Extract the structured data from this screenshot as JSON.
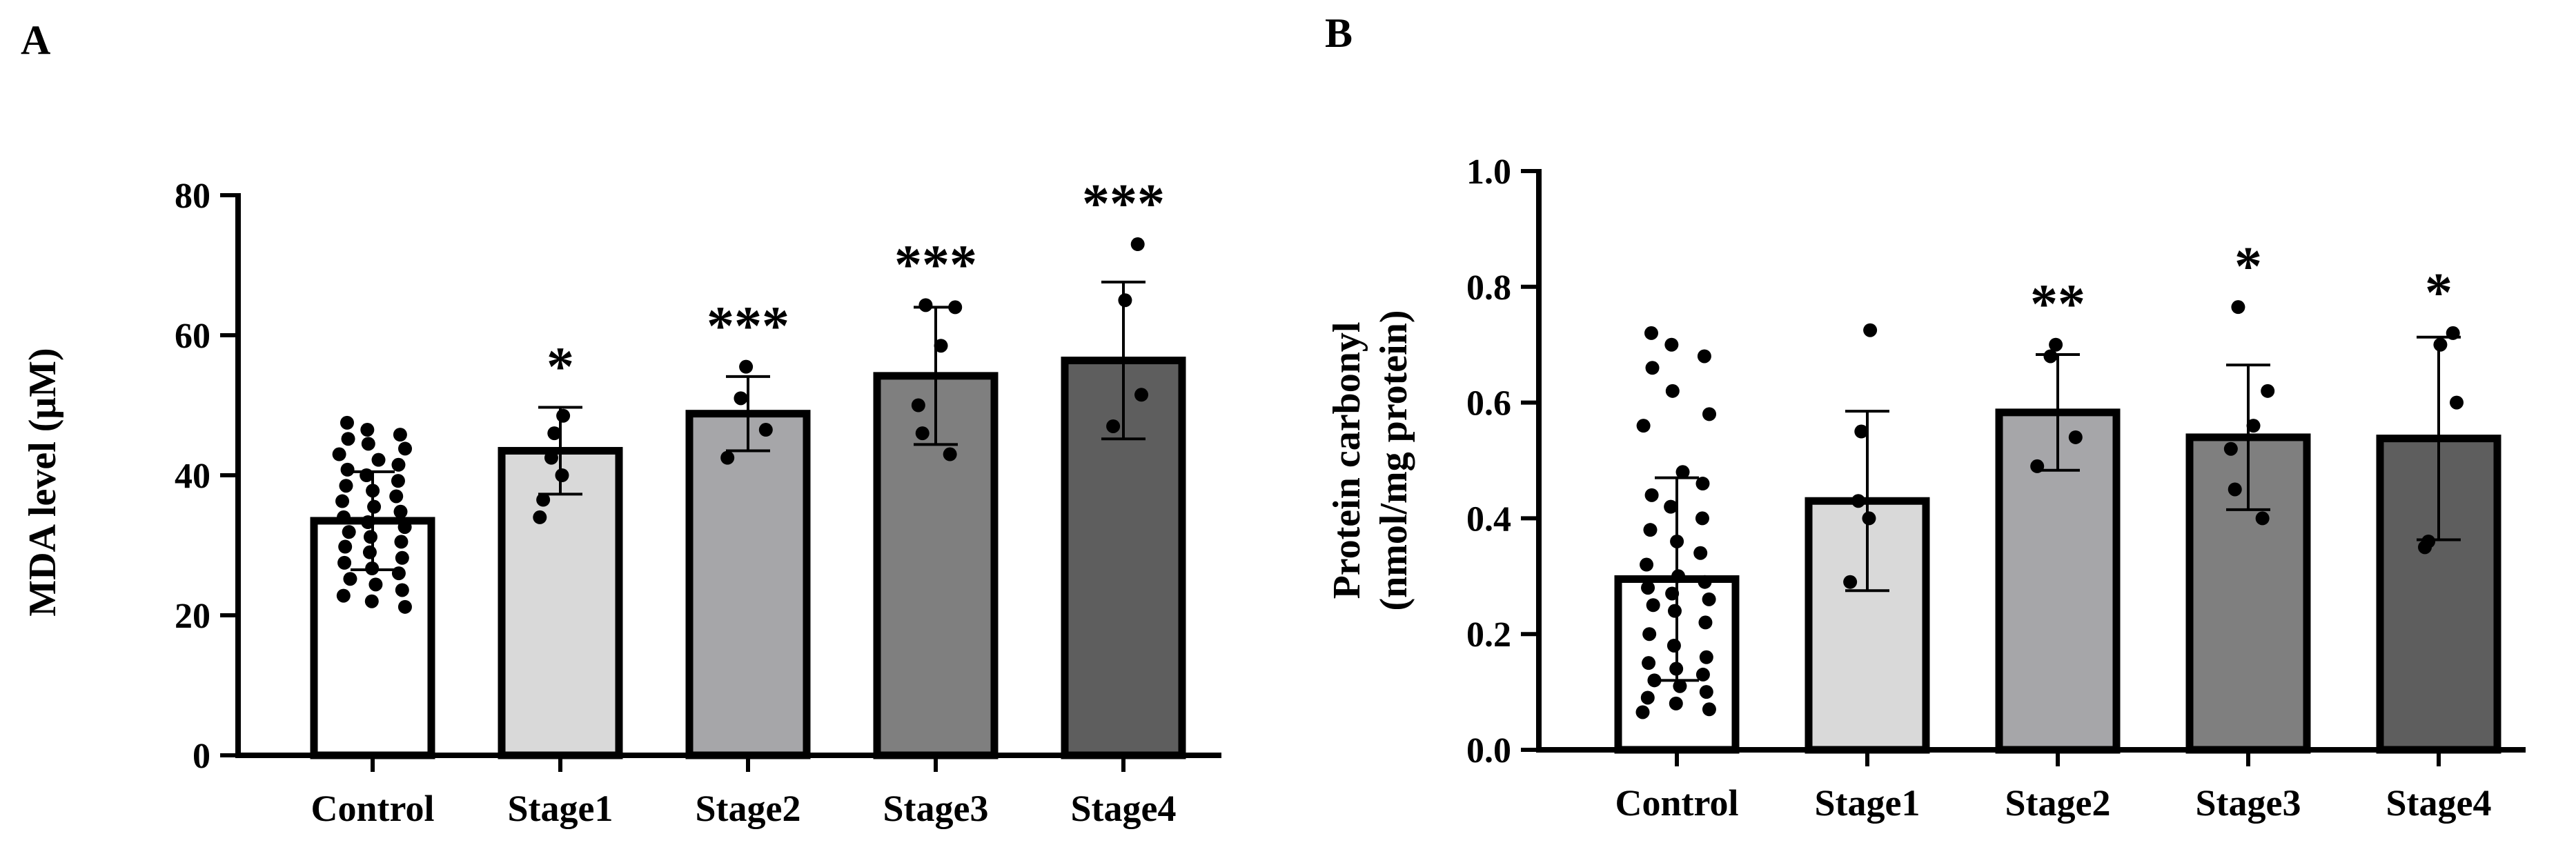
{
  "chart_data": [
    {
      "type": "bar",
      "panel_label": "A",
      "title": "",
      "xlabel": "",
      "ylabel": "MDA level (μM)",
      "ylim": [
        0,
        80
      ],
      "yticks": [
        0,
        20,
        40,
        60,
        80
      ],
      "tick_labels": [
        "0",
        "20",
        "40",
        "60",
        "80"
      ],
      "categories": [
        "Control",
        "Stage1",
        "Stage2",
        "Stage3",
        "Stage4"
      ],
      "values": [
        33.5,
        43.5,
        48.8,
        54.2,
        56.4
      ],
      "error_sd": [
        7.0,
        6.2,
        5.3,
        9.8,
        11.2
      ],
      "bar_colors": [
        "#ffffff",
        "#d9d9d9",
        "#a6a6a9",
        "#7f7f7f",
        "#5e5e5e"
      ],
      "significance": [
        "",
        "*",
        "***",
        "***",
        "***"
      ],
      "points": [
        [
          47.5,
          46.5,
          45.8,
          45.2,
          44.5,
          43.8,
          43.0,
          42.2,
          41.5,
          40.8,
          40.0,
          39.2,
          38.5,
          37.8,
          37.0,
          36.3,
          35.5,
          34.8,
          34.0,
          33.3,
          32.6,
          31.9,
          31.2,
          30.5,
          29.8,
          29.0,
          28.2,
          27.5,
          26.7,
          26.0,
          25.2,
          24.4,
          23.6,
          22.8,
          22.0,
          21.2
        ],
        [
          48.5,
          46.0,
          42.5,
          40.0,
          36.5,
          34.0
        ],
        [
          55.5,
          51.0,
          46.5,
          42.5
        ],
        [
          64.3,
          64.0,
          58.5,
          50.0,
          46.0,
          43.0
        ],
        [
          73.0,
          65.0,
          51.5,
          47.0
        ]
      ]
    },
    {
      "type": "bar",
      "panel_label": "B",
      "title": "",
      "xlabel": "",
      "ylabel": "Protein carbonyl",
      "ylabel_line2": "(nmol/mg protein)",
      "ylim": [
        0,
        1.0
      ],
      "yticks": [
        0.0,
        0.2,
        0.4,
        0.6,
        0.8,
        1.0
      ],
      "tick_labels": [
        "0.0",
        "0.2",
        "0.4",
        "0.6",
        "0.8",
        "1.0"
      ],
      "categories": [
        "Control",
        "Stage1",
        "Stage2",
        "Stage3",
        "Stage4"
      ],
      "values": [
        0.295,
        0.43,
        0.583,
        0.54,
        0.538
      ],
      "error_sd": [
        0.175,
        0.155,
        0.1,
        0.125,
        0.175
      ],
      "bar_colors": [
        "#ffffff",
        "#d9d9d9",
        "#a6a6a9",
        "#7f7f7f",
        "#5e5e5e"
      ],
      "significance": [
        "",
        "",
        "**",
        "*",
        "*"
      ],
      "points": [
        [
          0.72,
          0.7,
          0.68,
          0.66,
          0.62,
          0.58,
          0.56,
          0.48,
          0.46,
          0.44,
          0.42,
          0.4,
          0.38,
          0.36,
          0.34,
          0.32,
          0.3,
          0.29,
          0.28,
          0.27,
          0.26,
          0.25,
          0.24,
          0.22,
          0.2,
          0.18,
          0.16,
          0.15,
          0.14,
          0.13,
          0.12,
          0.11,
          0.1,
          0.09,
          0.08,
          0.07,
          0.065
        ],
        [
          0.725,
          0.55,
          0.43,
          0.4,
          0.29
        ],
        [
          0.7,
          0.68,
          0.54,
          0.49
        ],
        [
          0.765,
          0.62,
          0.56,
          0.52,
          0.45,
          0.4
        ],
        [
          0.72,
          0.7,
          0.6,
          0.36,
          0.35
        ]
      ]
    }
  ]
}
